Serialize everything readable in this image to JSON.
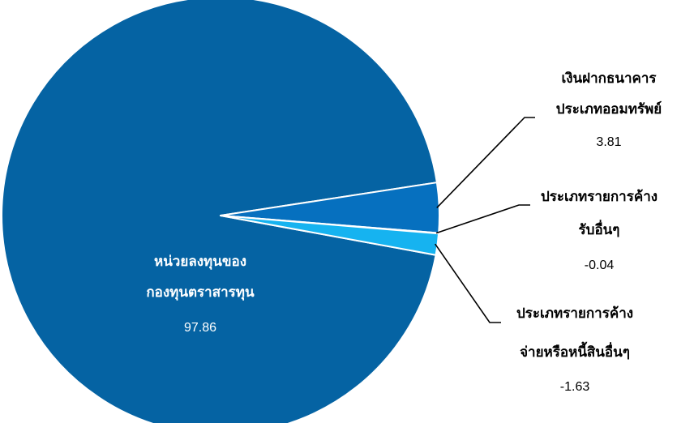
{
  "chart_data": {
    "type": "pie",
    "title": "",
    "slices": [
      {
        "name": "หน่วยลงทุนของกองทุนตราสารทุน",
        "label_lines": [
          "หน่วยลงทุนของ",
          "กองทุนตราสารทุน"
        ],
        "value": 97.86,
        "value_text": "97.86",
        "color": "#0563A3"
      },
      {
        "name": "เงินฝากธนาคารประเภทออมทรัพย์",
        "label_lines": [
          "เงินฝากธนาคาร",
          "ประเภทออมทรัพย์"
        ],
        "value": 3.81,
        "value_text": "3.81",
        "color": "#0670BF"
      },
      {
        "name": "ประเภทรายการค้างรับอื่นๆ",
        "label_lines": [
          "ประเภทรายการค้าง",
          "รับอื่นๆ"
        ],
        "value": -0.04,
        "value_text": "-0.04",
        "color": "#0A8FD8"
      },
      {
        "name": "ประเภทรายการค้างจ่ายหรือหนี้สินอื่นๆ",
        "label_lines": [
          "ประเภทรายการค้าง",
          "จ่ายหรือหนี้สินอื่นๆ"
        ],
        "value": -1.63,
        "value_text": "-1.63",
        "color": "#16B3F0"
      }
    ],
    "legend": "none",
    "label_style": "outside with leader lines"
  }
}
